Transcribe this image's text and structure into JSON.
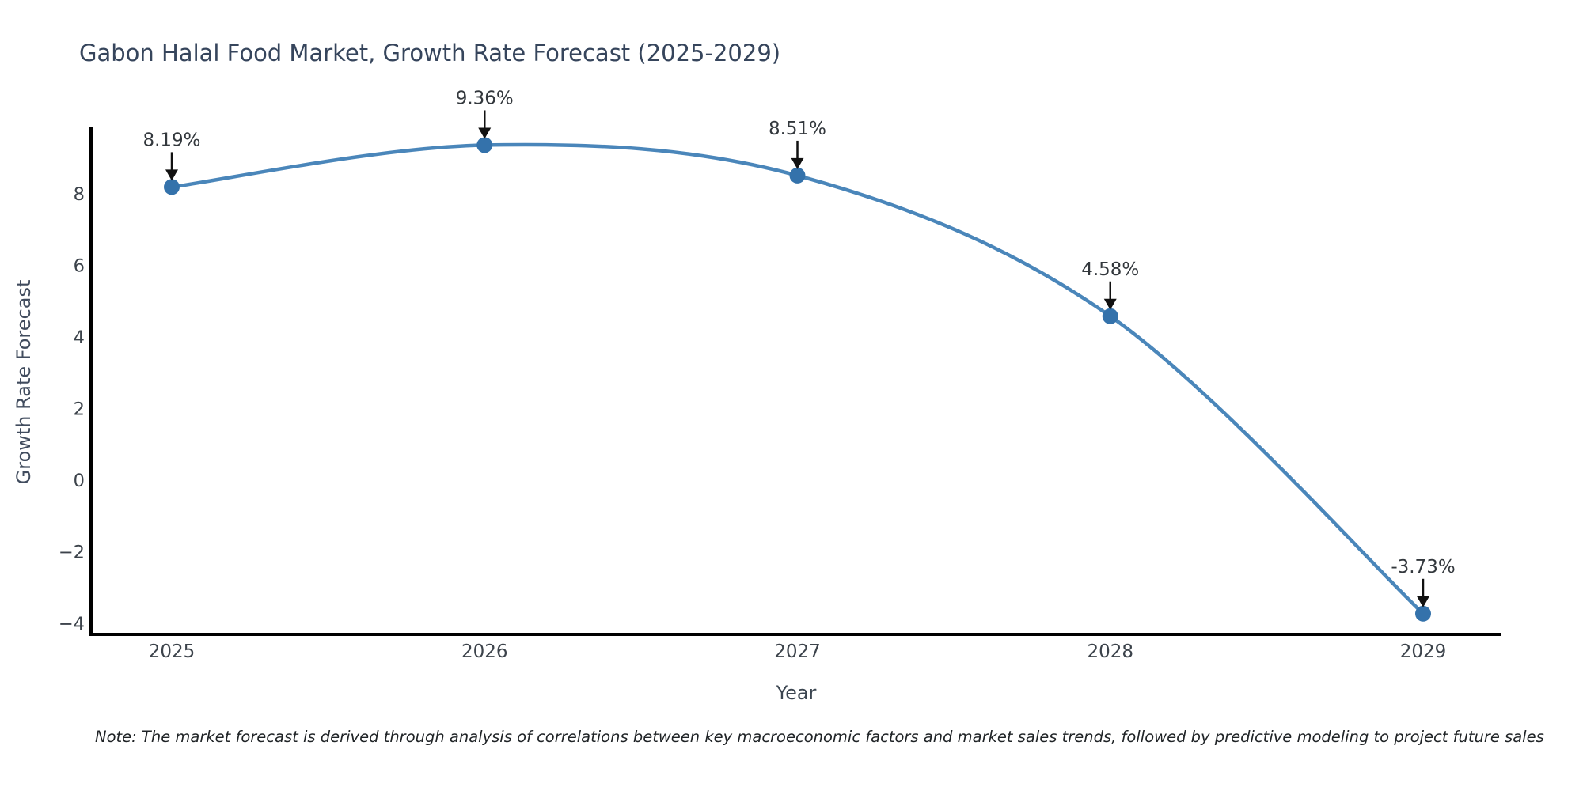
{
  "chart_data": {
    "type": "line",
    "title": "Gabon Halal Food Market, Growth Rate Forecast (2025-2029)",
    "xlabel": "Year",
    "ylabel": "Growth Rate Forecast",
    "categories": [
      "2025",
      "2026",
      "2027",
      "2028",
      "2029"
    ],
    "series": [
      {
        "name": "Growth Rate Forecast",
        "values": [
          8.19,
          9.36,
          8.51,
          4.58,
          -3.73
        ],
        "point_labels": [
          "8.19%",
          "9.36%",
          "8.51%",
          "4.58%",
          "-3.73%"
        ]
      }
    ],
    "y_ticks": [
      {
        "value": 8,
        "label": "8"
      },
      {
        "value": 6,
        "label": "6"
      },
      {
        "value": 4,
        "label": "4"
      },
      {
        "value": 2,
        "label": "2"
      },
      {
        "value": 0,
        "label": "0"
      },
      {
        "value": -2,
        "label": "−2"
      },
      {
        "value": -4,
        "label": "−4"
      }
    ],
    "ylim": [
      -4.4,
      9.9
    ],
    "grid": false,
    "legend_position": "none",
    "colors": {
      "line": "#4a86ba",
      "marker": "#3472ab",
      "axis": "#000000",
      "tick_label": "#3c434b",
      "annotation_text": "#33383d",
      "annotation_arrow": "#111111",
      "title_text": "#36455c"
    },
    "note": "Note: The market forecast is derived through analysis of correlations between key macroeconomic factors and market sales trends, followed by predictive modeling to project future sales"
  }
}
